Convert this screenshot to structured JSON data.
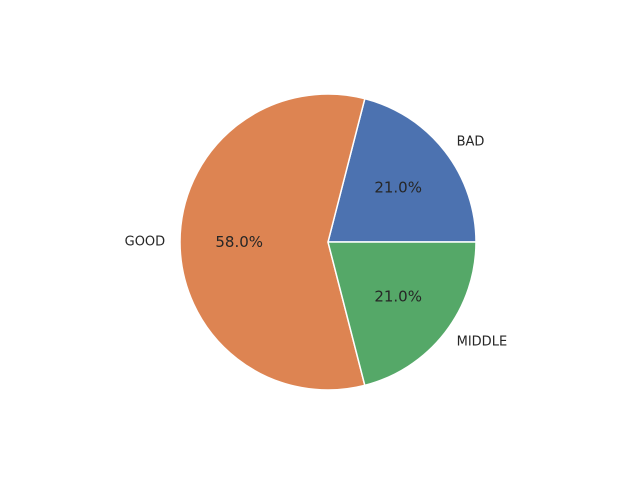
{
  "chart_data": {
    "type": "pie",
    "categories": [
      "BAD",
      "GOOD",
      "MIDDLE"
    ],
    "values": [
      21.0,
      58.0,
      21.0
    ],
    "percent_labels": [
      "21.0%",
      "58.0%",
      "21.0%"
    ],
    "colors": [
      "#4c72b0",
      "#dd8452",
      "#55a868"
    ],
    "start_angle_deg": 0,
    "direction": "counterclockwise",
    "edge_color": "#ffffff",
    "legend": "none",
    "title": ""
  }
}
